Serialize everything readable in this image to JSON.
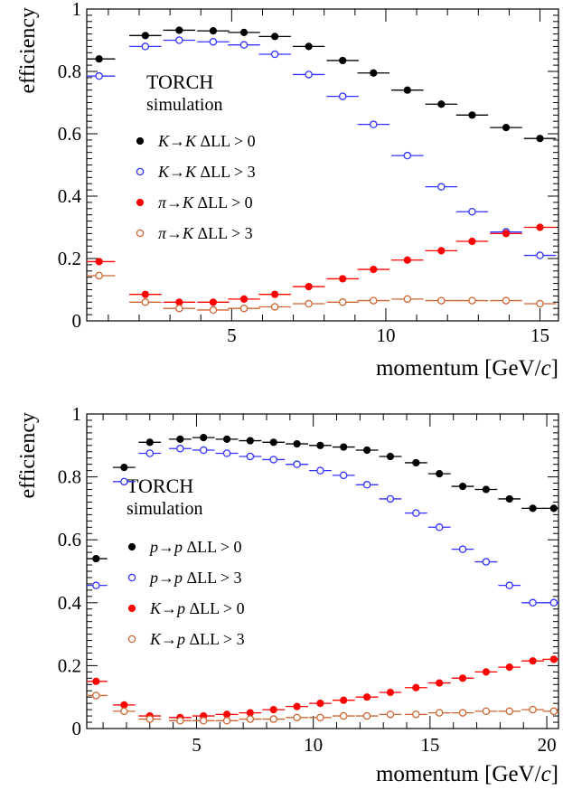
{
  "chart_data": [
    {
      "type": "scatter",
      "title": "",
      "xlabel": "momentum [GeV/c]",
      "xlabel_main": "momentum [GeV/",
      "xlabel_italic": "c",
      "xlabel_end": "]",
      "ylabel": "efficiency",
      "xlim": [
        0.3,
        15.6
      ],
      "ylim": [
        0,
        1
      ],
      "xticks": [
        5,
        10,
        15
      ],
      "yticks": [
        0,
        0.2,
        0.4,
        0.6,
        0.8,
        1
      ],
      "ytick_labels": [
        "0",
        "0.2",
        "0.4",
        "0.6",
        "0.8",
        "1"
      ],
      "xtick_labels": [
        "5",
        "10",
        "15"
      ],
      "annotation_line1": "TORCH",
      "annotation_line2": "simulation",
      "legend_position": "center-left",
      "bin_half_width": 0.52,
      "x": [
        1.05,
        2.1,
        3.15,
        4.2,
        5.25,
        6.3,
        7.35,
        8.4,
        9.45,
        10.5,
        11.55,
        12.6,
        13.65,
        14.7
      ],
      "series": [
        {
          "name": "K→K ΔLL > 0",
          "label_parts": [
            "K",
            "→",
            "K",
            " ΔLL > 0"
          ],
          "color": "#000000",
          "marker": "filled",
          "x": [
            0.7,
            2.2,
            3.3,
            4.4,
            5.4,
            6.4,
            7.5,
            8.6,
            9.6,
            10.7,
            11.8,
            12.8,
            13.9,
            15.0
          ],
          "values": [
            0.84,
            0.915,
            0.932,
            0.93,
            0.925,
            0.912,
            0.88,
            0.835,
            0.795,
            0.74,
            0.695,
            0.66,
            0.62,
            0.585
          ]
        },
        {
          "name": "K→K ΔLL > 3",
          "label_parts": [
            "K",
            "→",
            "K",
            " ΔLL > 3"
          ],
          "color": "#3333ff",
          "marker": "open",
          "x": [
            0.7,
            2.2,
            3.3,
            4.4,
            5.4,
            6.4,
            7.5,
            8.6,
            9.6,
            10.7,
            11.8,
            12.8,
            13.9,
            15.0
          ],
          "values": [
            0.785,
            0.88,
            0.9,
            0.895,
            0.885,
            0.855,
            0.79,
            0.72,
            0.63,
            0.53,
            0.43,
            0.35,
            0.285,
            0.21
          ]
        },
        {
          "name": "π→K ΔLL > 0",
          "label_parts": [
            "π",
            "→",
            "K",
            " ΔLL > 0"
          ],
          "color": "#ff0000",
          "marker": "filled",
          "x": [
            0.7,
            2.2,
            3.3,
            4.4,
            5.4,
            6.4,
            7.5,
            8.6,
            9.6,
            10.7,
            11.8,
            12.8,
            13.9,
            15.0
          ],
          "values": [
            0.19,
            0.085,
            0.06,
            0.06,
            0.07,
            0.085,
            0.11,
            0.135,
            0.165,
            0.195,
            0.225,
            0.255,
            0.28,
            0.3
          ]
        },
        {
          "name": "π→K ΔLL > 3",
          "label_parts": [
            "π",
            "→",
            "K",
            " ΔLL > 3"
          ],
          "color": "#cc6633",
          "marker": "open",
          "x": [
            0.7,
            2.2,
            3.3,
            4.4,
            5.4,
            6.4,
            7.5,
            8.6,
            9.6,
            10.7,
            11.8,
            12.8,
            13.9,
            15.0
          ],
          "values": [
            0.145,
            0.06,
            0.04,
            0.035,
            0.04,
            0.045,
            0.055,
            0.06,
            0.065,
            0.07,
            0.065,
            0.065,
            0.065,
            0.055
          ]
        }
      ]
    },
    {
      "type": "scatter",
      "title": "",
      "xlabel": "momentum [GeV/c]",
      "xlabel_main": "momentum [GeV/",
      "xlabel_italic": "c",
      "xlabel_end": "]",
      "ylabel": "efficiency",
      "xlim": [
        0.3,
        20.5
      ],
      "ylim": [
        0,
        1
      ],
      "xticks": [
        5,
        10,
        15,
        20
      ],
      "yticks": [
        0,
        0.2,
        0.4,
        0.6,
        0.8,
        1
      ],
      "ytick_labels": [
        "0",
        "0.2",
        "0.4",
        "0.6",
        "0.8",
        "1"
      ],
      "xtick_labels": [
        "5",
        "10",
        "15",
        "20"
      ],
      "annotation_line1": "TORCH",
      "annotation_line2": "simulation",
      "legend_position": "center-left",
      "bin_half_width": 0.48,
      "series": [
        {
          "name": "p→p ΔLL > 0",
          "label_parts": [
            "p",
            "→",
            "p",
            " ΔLL > 0"
          ],
          "color": "#000000",
          "marker": "filled",
          "x": [
            0.7,
            1.9,
            3.0,
            4.3,
            5.3,
            6.3,
            7.3,
            8.3,
            9.3,
            10.3,
            11.3,
            12.3,
            13.3,
            14.4,
            15.4,
            16.4,
            17.4,
            18.4,
            19.4,
            20.3
          ],
          "values": [
            0.54,
            0.83,
            0.91,
            0.92,
            0.925,
            0.92,
            0.915,
            0.91,
            0.905,
            0.9,
            0.895,
            0.885,
            0.865,
            0.845,
            0.81,
            0.77,
            0.76,
            0.73,
            0.7,
            0.7
          ]
        },
        {
          "name": "p→p ΔLL > 3",
          "label_parts": [
            "p",
            "→",
            "p",
            " ΔLL > 3"
          ],
          "color": "#3333ff",
          "marker": "open",
          "x": [
            0.7,
            1.9,
            3.0,
            4.3,
            5.3,
            6.3,
            7.3,
            8.3,
            9.3,
            10.3,
            11.3,
            12.3,
            13.3,
            14.4,
            15.4,
            16.4,
            17.4,
            18.4,
            19.4,
            20.3
          ],
          "values": [
            0.455,
            0.785,
            0.875,
            0.89,
            0.885,
            0.875,
            0.865,
            0.855,
            0.84,
            0.82,
            0.805,
            0.775,
            0.73,
            0.685,
            0.64,
            0.57,
            0.53,
            0.455,
            0.4,
            0.4
          ]
        },
        {
          "name": "K→p ΔLL > 0",
          "label_parts": [
            "K",
            "→",
            "p",
            " ΔLL > 0"
          ],
          "color": "#ff0000",
          "marker": "filled",
          "x": [
            0.7,
            1.9,
            3.0,
            4.3,
            5.3,
            6.3,
            7.3,
            8.3,
            9.3,
            10.3,
            11.3,
            12.3,
            13.3,
            14.4,
            15.4,
            16.4,
            17.4,
            18.4,
            19.4,
            20.3
          ],
          "values": [
            0.15,
            0.075,
            0.04,
            0.035,
            0.04,
            0.045,
            0.05,
            0.06,
            0.07,
            0.08,
            0.09,
            0.1,
            0.115,
            0.13,
            0.145,
            0.16,
            0.18,
            0.195,
            0.215,
            0.22
          ]
        },
        {
          "name": "K→p ΔLL > 3",
          "label_parts": [
            "K",
            "→",
            "p",
            " ΔLL > 3"
          ],
          "color": "#cc6633",
          "marker": "open",
          "x": [
            0.7,
            1.9,
            3.0,
            4.3,
            5.3,
            6.3,
            7.3,
            8.3,
            9.3,
            10.3,
            11.3,
            12.3,
            13.3,
            14.4,
            15.4,
            16.4,
            17.4,
            18.4,
            19.4,
            20.3
          ],
          "values": [
            0.105,
            0.055,
            0.03,
            0.025,
            0.025,
            0.025,
            0.03,
            0.03,
            0.035,
            0.035,
            0.04,
            0.04,
            0.045,
            0.045,
            0.05,
            0.05,
            0.055,
            0.055,
            0.06,
            0.055
          ]
        }
      ]
    }
  ]
}
